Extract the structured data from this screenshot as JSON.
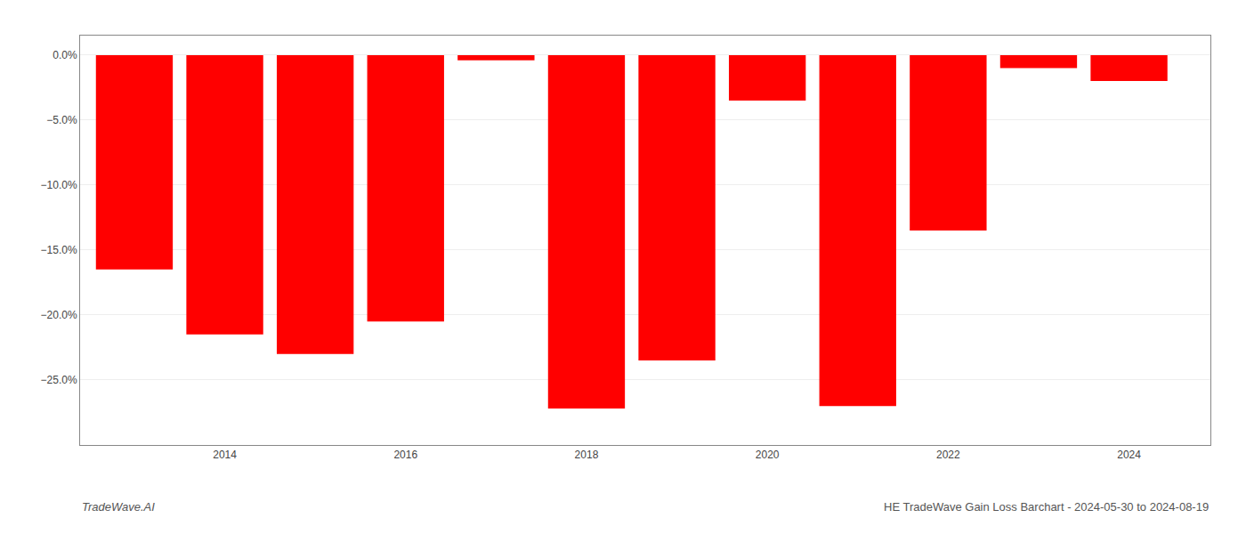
{
  "chart_data": {
    "type": "bar",
    "x": [
      2013,
      2014,
      2015,
      2016,
      2017,
      2018,
      2019,
      2020,
      2021,
      2022,
      2023,
      2024
    ],
    "values": [
      -16.5,
      -21.5,
      -23.0,
      -20.5,
      -0.4,
      -27.2,
      -23.5,
      -3.5,
      -27.0,
      -13.5,
      -1.0,
      -2.0
    ],
    "color": "#ff0000",
    "xlim": [
      2012.4,
      2024.9
    ],
    "xticks": [
      2014,
      2016,
      2018,
      2020,
      2022,
      2024
    ],
    "ylim": [
      -30,
      1.5
    ],
    "yticks": [
      {
        "value": 0.0,
        "label": "0.0%"
      },
      {
        "value": -5.0,
        "label": "−5.0%"
      },
      {
        "value": -10.0,
        "label": "−10.0%"
      },
      {
        "value": -15.0,
        "label": "−15.0%"
      },
      {
        "value": -20.0,
        "label": "−20.0%"
      },
      {
        "value": -25.0,
        "label": "−25.0%"
      }
    ],
    "grid": "y",
    "annotations": [
      "TradeWave.AI",
      "HE TradeWave Gain Loss Barchart - 2024-05-30 to 2024-08-19"
    ]
  }
}
